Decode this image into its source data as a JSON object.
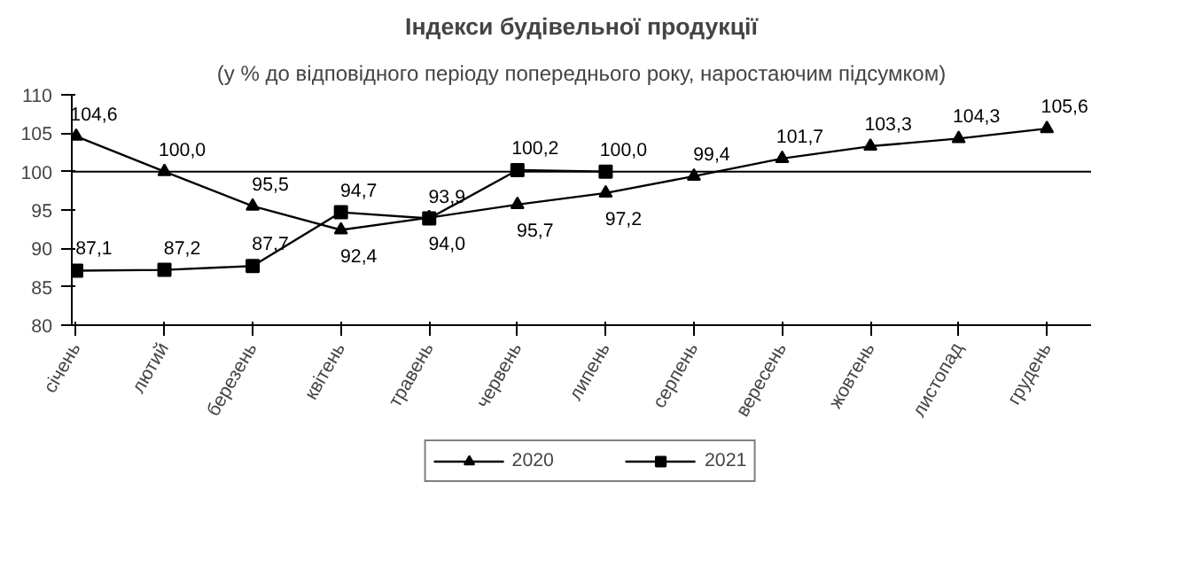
{
  "chart_data": {
    "type": "line",
    "title": "Індекси будівельної продукції",
    "subtitle": "(у % до відповідного періоду попереднього року, наростаючим підсумком)",
    "categories": [
      "січень",
      "лютий",
      "березень",
      "квітень",
      "травень",
      "червень",
      "липень",
      "серпень",
      "вересень",
      "жовтень",
      "листопад",
      "грудень"
    ],
    "series": [
      {
        "name": "2020",
        "color": "#000000",
        "marker": "triangle",
        "values": [
          104.6,
          100.0,
          95.5,
          92.4,
          94.0,
          95.7,
          97.2,
          99.4,
          101.7,
          103.3,
          104.3,
          105.6
        ],
        "value_labels": [
          "104,6",
          "100,0",
          "95,5",
          "92,4",
          "94,0",
          "95,7",
          "97,2",
          "99,4",
          "101,7",
          "103,3",
          "104,3",
          "105,6"
        ]
      },
      {
        "name": "2021",
        "color": "#000000",
        "marker": "square",
        "values": [
          87.1,
          87.2,
          87.7,
          94.7,
          93.9,
          100.2,
          100.0,
          null,
          null,
          null,
          null,
          null
        ],
        "value_labels": [
          "87,1",
          "87,2",
          "87,7",
          "94,7",
          "93,9",
          "100,2",
          "100,0",
          null,
          null,
          null,
          null,
          null
        ]
      }
    ],
    "ylim": [
      80,
      110
    ],
    "yticks": [
      80,
      85,
      90,
      95,
      100,
      105,
      110
    ],
    "ref_lines": [
      {
        "axis": "y",
        "value": 100,
        "color": "#000000"
      }
    ],
    "grid": false,
    "legend": "bottom",
    "line_style": "solid"
  }
}
